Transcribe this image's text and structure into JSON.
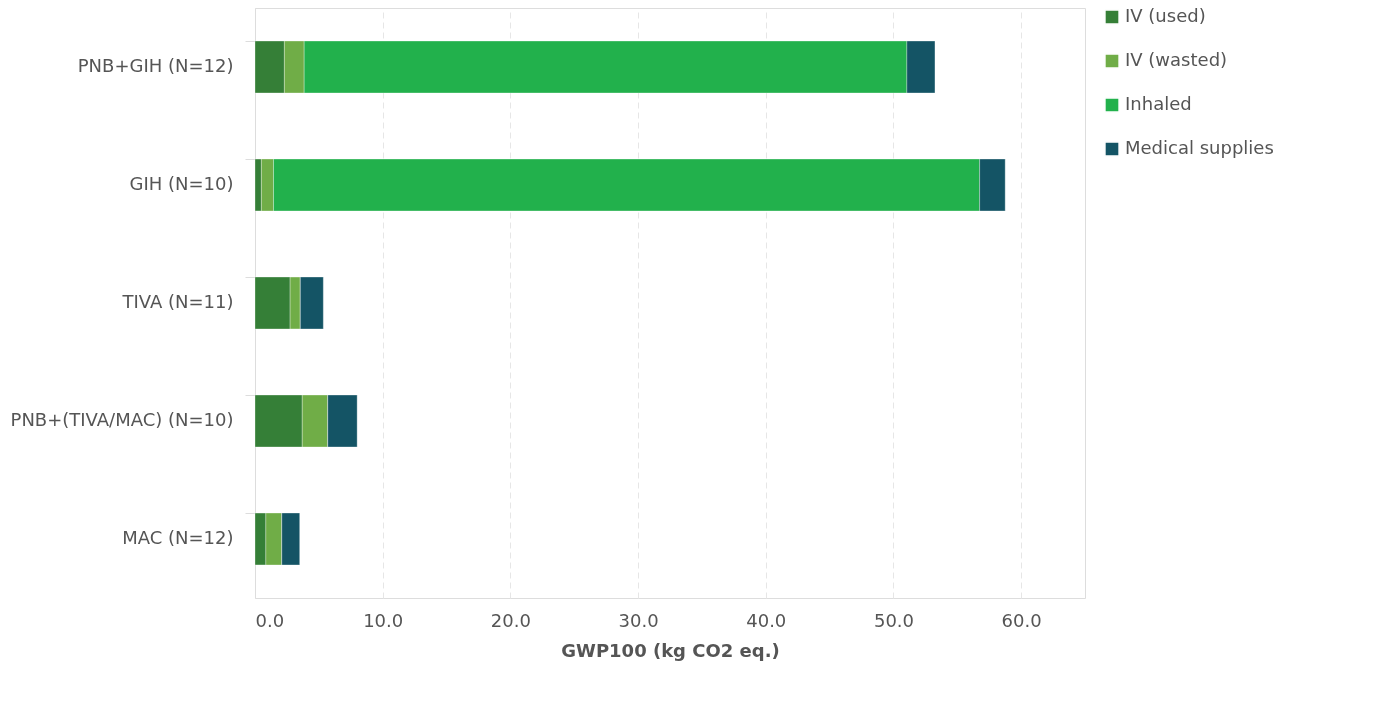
{
  "chart_data": {
    "type": "bar",
    "orientation": "horizontal",
    "stacked": true,
    "xlabel": "GWP100 (kg CO2 eq.)",
    "categories": [
      "PNB+GIH (N=12)",
      "GIH (N=10)",
      "TIVA (N=11)",
      "PNB+(TIVA/MAC) (N=10)",
      "MAC (N=12)"
    ],
    "series": [
      {
        "name": "IV (used)",
        "color": "#357f37",
        "values": [
          2.3,
          0.5,
          2.75,
          3.7,
          0.85
        ]
      },
      {
        "name": "IV (wasted)",
        "color": "#70ad47",
        "values": [
          1.55,
          0.95,
          0.8,
          2.0,
          1.25
        ]
      },
      {
        "name": "Inhaled",
        "color": "#22b14c",
        "values": [
          47.2,
          55.3,
          0,
          0,
          0
        ]
      },
      {
        "name": "Medical supplies",
        "color": "#145465",
        "values": [
          2.2,
          2.0,
          1.8,
          2.3,
          1.4
        ]
      }
    ],
    "xlim": [
      0,
      65
    ],
    "xticks": [
      {
        "value": 0,
        "label": "0.0"
      },
      {
        "value": 10,
        "label": "10.0"
      },
      {
        "value": 20,
        "label": "20.0"
      },
      {
        "value": 30,
        "label": "30.0"
      },
      {
        "value": 40,
        "label": "40.0"
      },
      {
        "value": 50,
        "label": "50.0"
      },
      {
        "value": 60,
        "label": "60.0"
      }
    ],
    "grid": "x",
    "legend": "right"
  }
}
